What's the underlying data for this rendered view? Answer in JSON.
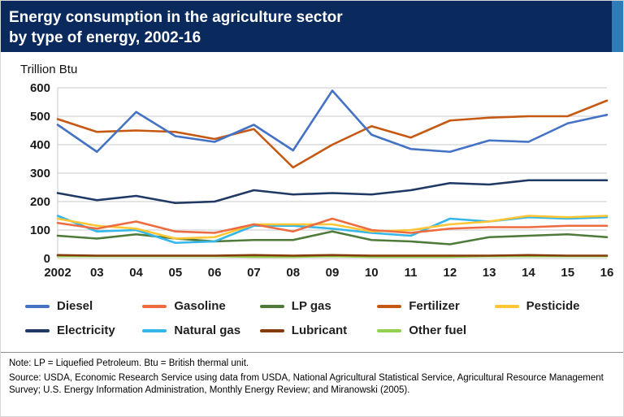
{
  "header": {
    "title_line1": "Energy consumption in the agriculture sector",
    "title_line2": "by type of energy, 2002-16"
  },
  "chart_data": {
    "type": "line",
    "title": "Energy consumption in the agriculture sector by type of energy, 2002-16",
    "ylabel": "Trillion Btu",
    "xlabel": "",
    "ylim": [
      0,
      600
    ],
    "yticks": [
      0,
      100,
      200,
      300,
      400,
      500,
      600
    ],
    "grid": "horizontal",
    "legend_position": "bottom",
    "categories": [
      "2002",
      "03",
      "04",
      "05",
      "06",
      "07",
      "08",
      "09",
      "10",
      "11",
      "12",
      "13",
      "14",
      "15",
      "16"
    ],
    "series": [
      {
        "name": "Diesel",
        "color": "#4472C4",
        "values": [
          470,
          375,
          515,
          430,
          410,
          470,
          380,
          590,
          435,
          385,
          375,
          415,
          410,
          475,
          505
        ]
      },
      {
        "name": "Gasoline",
        "color": "#ED6B40",
        "values": [
          125,
          105,
          130,
          95,
          90,
          120,
          95,
          140,
          100,
          90,
          105,
          110,
          110,
          115,
          115
        ]
      },
      {
        "name": "LP gas",
        "color": "#4E7B3A",
        "values": [
          80,
          70,
          85,
          70,
          60,
          65,
          65,
          95,
          65,
          60,
          50,
          75,
          80,
          85,
          75
        ]
      },
      {
        "name": "Fertilizer",
        "color": "#C65911",
        "values": [
          490,
          445,
          450,
          445,
          420,
          455,
          320,
          400,
          465,
          425,
          485,
          495,
          500,
          500,
          555
        ]
      },
      {
        "name": "Pesticide",
        "color": "#FFC533",
        "values": [
          140,
          115,
          105,
          70,
          75,
          120,
          120,
          120,
          95,
          100,
          120,
          130,
          150,
          145,
          150
        ]
      },
      {
        "name": "Electricity",
        "color": "#1F3864",
        "values": [
          230,
          205,
          220,
          195,
          200,
          240,
          225,
          230,
          225,
          240,
          265,
          260,
          275,
          275,
          275
        ]
      },
      {
        "name": "Natural gas",
        "color": "#35B6E9",
        "values": [
          150,
          95,
          100,
          55,
          60,
          115,
          115,
          105,
          90,
          80,
          140,
          130,
          145,
          140,
          145
        ]
      },
      {
        "name": "Lubricant",
        "color": "#843C0C",
        "values": [
          12,
          10,
          10,
          10,
          10,
          12,
          10,
          12,
          10,
          10,
          10,
          10,
          12,
          10,
          10
        ]
      },
      {
        "name": "Other fuel",
        "color": "#92D050",
        "values": [
          8,
          8,
          8,
          8,
          8,
          6,
          6,
          8,
          6,
          6,
          6,
          8,
          8,
          8,
          8
        ]
      }
    ]
  },
  "notes": {
    "note": "Note: LP = Liquefied Petroleum. Btu = British thermal unit.",
    "source": "Source: USDA, Economic Research Service using data from USDA, National Agricultural Statistical Service, Agricultural Resource Management Survey; U.S. Energy Information Administration, Monthly Energy Review; and Miranowski (2005)."
  },
  "colors": {
    "header_bg": "#0A2A5E",
    "header_accent": "#2E7DBA",
    "grid": "#C9C9C9",
    "tick_text": "#1A1A1A"
  }
}
